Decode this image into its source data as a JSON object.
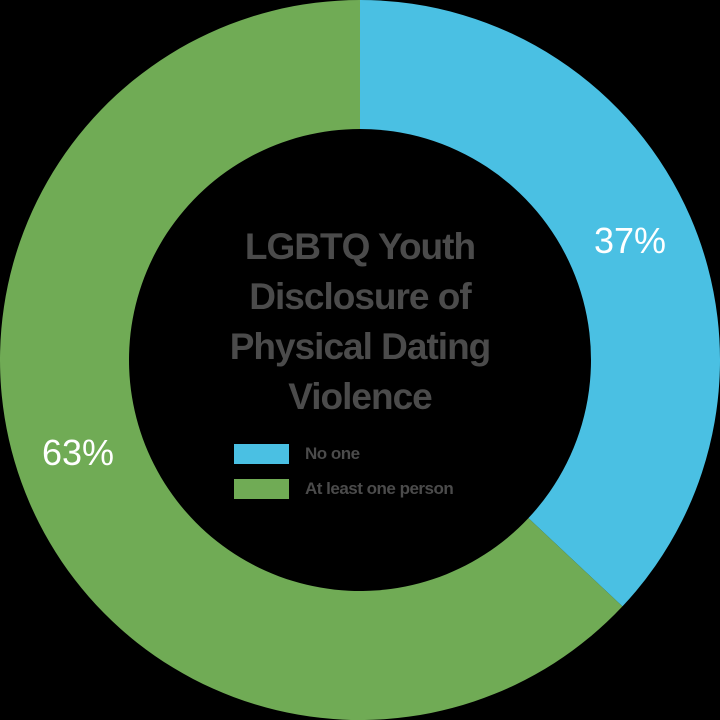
{
  "chart_data": {
    "type": "pie",
    "subtype": "donut",
    "title": "LGBTQ Youth Disclosure of Physical Dating Violence",
    "title_lines": [
      "LGBTQ Youth",
      "Disclosure of",
      "Physical Dating",
      "Violence"
    ],
    "categories": [
      "No one",
      "At least one person"
    ],
    "values": [
      37,
      63
    ],
    "labels": [
      "37%",
      "63%"
    ],
    "colors": [
      "#4ac0e3",
      "#70ab55"
    ],
    "legend_position": "center",
    "start_angle_deg": 0,
    "direction": "clockwise"
  },
  "colors": {
    "background": "#000000",
    "text": "#4b4b4b",
    "label": "#ffffff"
  }
}
